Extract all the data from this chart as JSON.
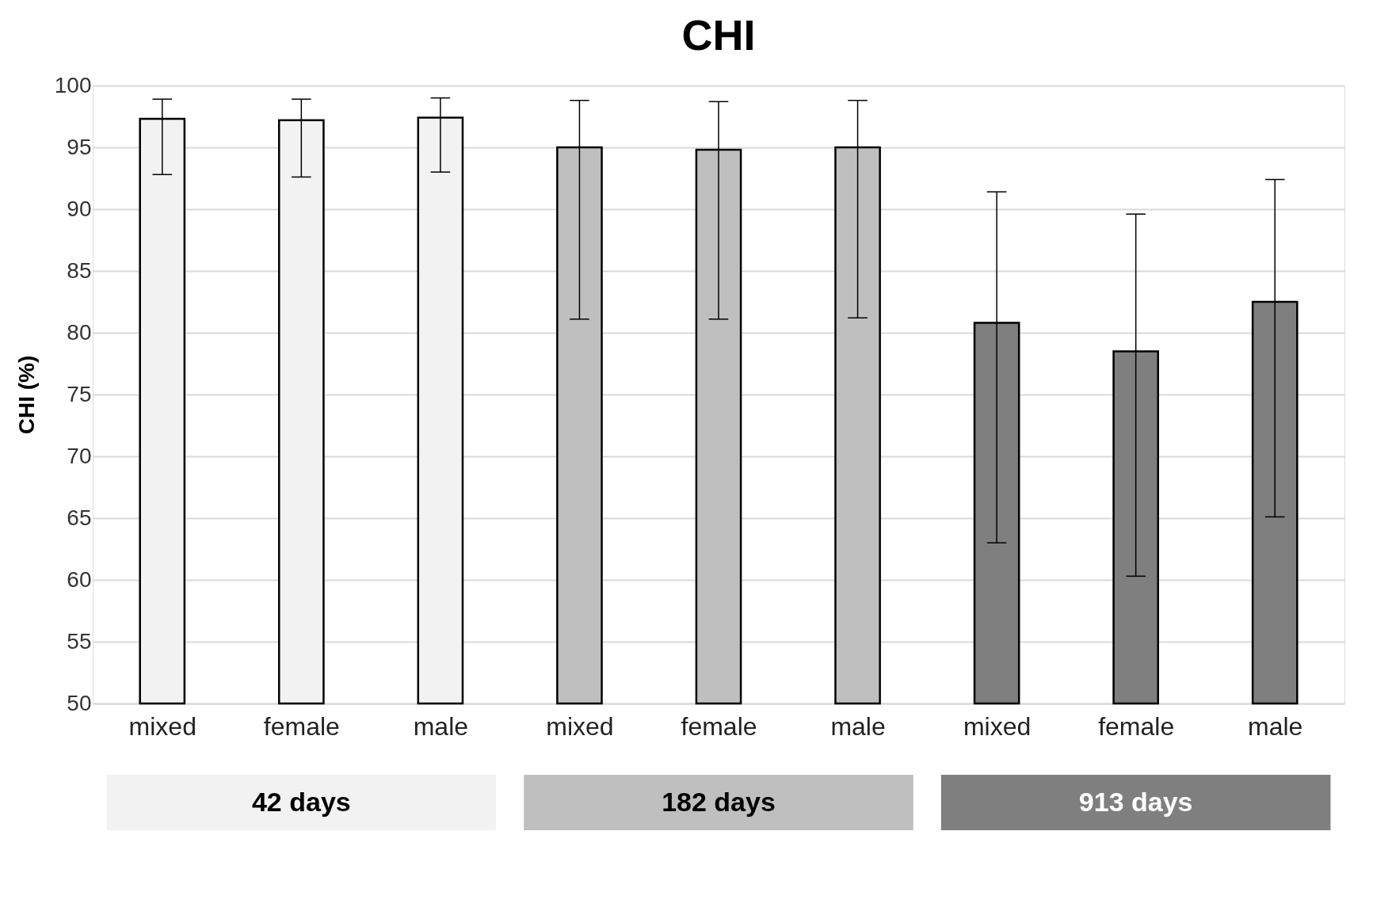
{
  "chart_data": {
    "type": "bar",
    "title": "CHI",
    "ylabel": "CHI (%)",
    "categories": [
      "mixed",
      "female",
      "male",
      "mixed",
      "female",
      "male",
      "mixed",
      "female",
      "male"
    ],
    "values": [
      97.3,
      97.2,
      97.4,
      95.0,
      94.8,
      95.0,
      80.8,
      78.5,
      82.5
    ],
    "errors": [
      [
        92.8,
        98.9
      ],
      [
        92.6,
        98.9
      ],
      [
        93.0,
        99.0
      ],
      [
        81.1,
        98.8
      ],
      [
        81.1,
        98.7
      ],
      [
        81.2,
        98.8
      ],
      [
        63.0,
        91.4
      ],
      [
        60.3,
        89.6
      ],
      [
        65.1,
        92.4
      ]
    ],
    "colors": [
      "#f2f2f2",
      "#f2f2f2",
      "#f2f2f2",
      "#bfbfbf",
      "#bfbfbf",
      "#bfbfbf",
      "#7f7f7f",
      "#7f7f7f",
      "#7f7f7f"
    ],
    "ylim": [
      50,
      100
    ],
    "yticks": [
      50,
      55,
      60,
      65,
      70,
      75,
      80,
      85,
      90,
      95,
      100
    ],
    "grid": "y",
    "annotations": [
      "42 days",
      "182 days",
      "913 days"
    ]
  }
}
